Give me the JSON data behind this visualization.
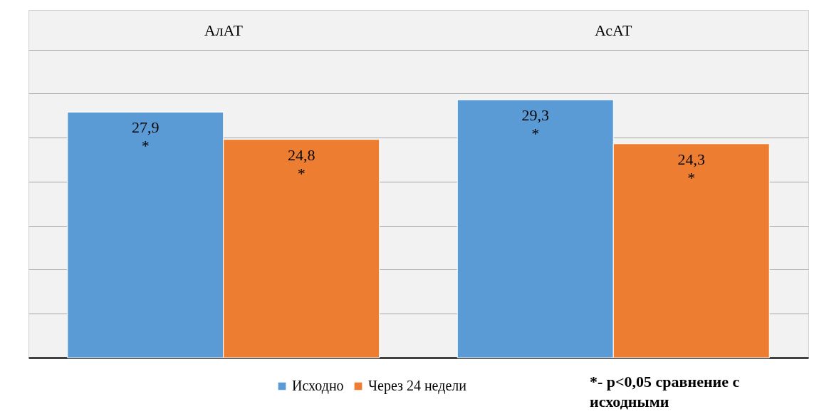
{
  "chart_data": {
    "type": "bar",
    "categories": [
      "АлАТ",
      "АсАТ"
    ],
    "series": [
      {
        "name": "Исходно",
        "color": "#5b9bd5",
        "values": [
          27.9,
          29.3
        ],
        "value_labels": [
          "27,9\n*",
          "29,3\n*"
        ]
      },
      {
        "name": "Через 24 недели",
        "color": "#ed7d31",
        "values": [
          24.8,
          24.3
        ],
        "value_labels": [
          "24,8\n*",
          "24,3\n*"
        ]
      }
    ],
    "ylim": [
      0,
      39.5
    ],
    "tick_labels": "x",
    "grid": "y",
    "legend": "bottom",
    "annotations": [
      "*- p<0,05 сравнение с исходными"
    ]
  }
}
